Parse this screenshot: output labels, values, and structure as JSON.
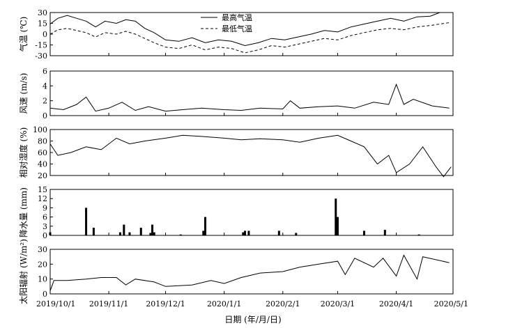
{
  "chart_data": {
    "type": "line",
    "xlabel": "日期 (年/月/日)",
    "x_range": [
      "2019-10-01",
      "2020-05-01"
    ],
    "x_tick_labels": [
      "2019/10/1",
      "2019/11/1",
      "2019/12/1",
      "2020/1/1",
      "2020/2/1",
      "2020/3/1",
      "2020/4/1",
      "2020/5/1"
    ],
    "x_tick_dates": [
      "2019-10-01",
      "2019-11-01",
      "2019-12-01",
      "2020-01-01",
      "2020-02-01",
      "2020-03-01",
      "2020-04-01",
      "2020-05-01"
    ],
    "panels": [
      {
        "id": "temperature",
        "ylabel": "气温 (℃)",
        "ylim": [
          -30,
          30
        ],
        "yticks": [
          30,
          15,
          0,
          -15,
          -30
        ],
        "legend": [
          "最高气温",
          "最低气温"
        ],
        "legend_position": "top-center",
        "series": [
          {
            "name": "最高气温",
            "style": "solid",
            "points": [
              [
                "2019-10-01",
                14
              ],
              [
                "2019-10-05",
                22
              ],
              [
                "2019-10-10",
                26
              ],
              [
                "2019-10-15",
                22
              ],
              [
                "2019-10-20",
                18
              ],
              [
                "2019-10-25",
                10
              ],
              [
                "2019-10-30",
                18
              ],
              [
                "2019-11-05",
                15
              ],
              [
                "2019-11-10",
                20
              ],
              [
                "2019-11-15",
                18
              ],
              [
                "2019-11-20",
                8
              ],
              [
                "2019-11-25",
                2
              ],
              [
                "2019-12-01",
                -8
              ],
              [
                "2019-12-08",
                -10
              ],
              [
                "2019-12-15",
                -5
              ],
              [
                "2019-12-22",
                -12
              ],
              [
                "2019-12-29",
                -8
              ],
              [
                "2020-01-05",
                -10
              ],
              [
                "2020-01-12",
                -16
              ],
              [
                "2020-01-19",
                -12
              ],
              [
                "2020-01-26",
                -6
              ],
              [
                "2020-02-02",
                -8
              ],
              [
                "2020-02-09",
                -4
              ],
              [
                "2020-02-16",
                0
              ],
              [
                "2020-02-23",
                5
              ],
              [
                "2020-03-01",
                3
              ],
              [
                "2020-03-08",
                10
              ],
              [
                "2020-03-15",
                14
              ],
              [
                "2020-03-22",
                18
              ],
              [
                "2020-03-29",
                22
              ],
              [
                "2020-04-05",
                18
              ],
              [
                "2020-04-12",
                24
              ],
              [
                "2020-04-19",
                25
              ],
              [
                "2020-04-24",
                30
              ]
            ]
          },
          {
            "name": "最低气温",
            "style": "dashed",
            "points": [
              [
                "2019-10-01",
                0
              ],
              [
                "2019-10-05",
                6
              ],
              [
                "2019-10-10",
                8
              ],
              [
                "2019-10-15",
                5
              ],
              [
                "2019-10-20",
                2
              ],
              [
                "2019-10-25",
                -4
              ],
              [
                "2019-10-30",
                2
              ],
              [
                "2019-11-05",
                0
              ],
              [
                "2019-11-10",
                4
              ],
              [
                "2019-11-15",
                0
              ],
              [
                "2019-11-20",
                -6
              ],
              [
                "2019-11-25",
                -12
              ],
              [
                "2019-12-01",
                -18
              ],
              [
                "2019-12-08",
                -20
              ],
              [
                "2019-12-15",
                -15
              ],
              [
                "2019-12-22",
                -22
              ],
              [
                "2019-12-29",
                -18
              ],
              [
                "2020-01-05",
                -20
              ],
              [
                "2020-01-12",
                -26
              ],
              [
                "2020-01-19",
                -22
              ],
              [
                "2020-01-26",
                -16
              ],
              [
                "2020-02-02",
                -18
              ],
              [
                "2020-02-09",
                -14
              ],
              [
                "2020-02-16",
                -10
              ],
              [
                "2020-02-23",
                -6
              ],
              [
                "2020-03-01",
                -8
              ],
              [
                "2020-03-08",
                -2
              ],
              [
                "2020-03-15",
                2
              ],
              [
                "2020-03-22",
                6
              ],
              [
                "2020-03-29",
                8
              ],
              [
                "2020-04-05",
                6
              ],
              [
                "2020-04-12",
                10
              ],
              [
                "2020-04-19",
                12
              ],
              [
                "2020-04-29",
                16
              ]
            ]
          }
        ]
      },
      {
        "id": "wind",
        "ylabel": "风速 (m/s)",
        "ylim": [
          0,
          6
        ],
        "yticks": [
          6,
          4,
          2,
          0
        ],
        "series": [
          {
            "name": "",
            "style": "solid",
            "points": [
              [
                "2019-10-01",
                1.0
              ],
              [
                "2019-10-08",
                0.8
              ],
              [
                "2019-10-15",
                1.5
              ],
              [
                "2019-10-20",
                2.5
              ],
              [
                "2019-10-25",
                0.6
              ],
              [
                "2019-11-01",
                1.0
              ],
              [
                "2019-11-08",
                1.8
              ],
              [
                "2019-11-15",
                0.7
              ],
              [
                "2019-11-22",
                1.2
              ],
              [
                "2019-12-01",
                0.6
              ],
              [
                "2019-12-10",
                0.8
              ],
              [
                "2019-12-20",
                1.0
              ],
              [
                "2020-01-01",
                0.8
              ],
              [
                "2020-01-10",
                0.7
              ],
              [
                "2020-01-20",
                1.0
              ],
              [
                "2020-02-01",
                0.9
              ],
              [
                "2020-02-05",
                2.0
              ],
              [
                "2020-02-10",
                1.0
              ],
              [
                "2020-02-20",
                1.2
              ],
              [
                "2020-03-01",
                1.3
              ],
              [
                "2020-03-10",
                1.0
              ],
              [
                "2020-03-20",
                1.8
              ],
              [
                "2020-03-28",
                1.5
              ],
              [
                "2020-04-01",
                4.2
              ],
              [
                "2020-04-05",
                1.5
              ],
              [
                "2020-04-10",
                2.2
              ],
              [
                "2020-04-20",
                1.3
              ],
              [
                "2020-04-29",
                1.0
              ]
            ]
          }
        ]
      },
      {
        "id": "humidity",
        "ylabel": "相对湿度 (%)",
        "ylim": [
          20,
          100
        ],
        "yticks": [
          100,
          80,
          60,
          40,
          20
        ],
        "series": [
          {
            "name": "",
            "style": "solid",
            "points": [
              [
                "2019-10-01",
                75
              ],
              [
                "2019-10-05",
                55
              ],
              [
                "2019-10-12",
                60
              ],
              [
                "2019-10-20",
                70
              ],
              [
                "2019-10-28",
                65
              ],
              [
                "2019-11-05",
                85
              ],
              [
                "2019-11-12",
                75
              ],
              [
                "2019-11-20",
                80
              ],
              [
                "2019-12-01",
                85
              ],
              [
                "2019-12-10",
                90
              ],
              [
                "2019-12-20",
                88
              ],
              [
                "2020-01-01",
                85
              ],
              [
                "2020-01-10",
                82
              ],
              [
                "2020-01-20",
                84
              ],
              [
                "2020-02-01",
                82
              ],
              [
                "2020-02-10",
                78
              ],
              [
                "2020-02-20",
                85
              ],
              [
                "2020-03-01",
                90
              ],
              [
                "2020-03-08",
                80
              ],
              [
                "2020-03-15",
                70
              ],
              [
                "2020-03-22",
                40
              ],
              [
                "2020-03-28",
                55
              ],
              [
                "2020-04-01",
                25
              ],
              [
                "2020-04-08",
                40
              ],
              [
                "2020-04-15",
                70
              ],
              [
                "2020-04-22",
                35
              ],
              [
                "2020-04-26",
                18
              ],
              [
                "2020-04-30",
                35
              ]
            ]
          }
        ]
      },
      {
        "id": "precipitation",
        "ylabel": "降水量 (mm)",
        "ylim": [
          0,
          15
        ],
        "yticks": [
          15,
          12,
          9,
          6,
          3,
          0
        ],
        "series": [
          {
            "name": "",
            "style": "bar",
            "points": [
              [
                "2019-10-01",
                1.0
              ],
              [
                "2019-10-20",
                9.0
              ],
              [
                "2019-10-24",
                2.5
              ],
              [
                "2019-11-07",
                1.0
              ],
              [
                "2019-11-09",
                3.5
              ],
              [
                "2019-11-12",
                1.0
              ],
              [
                "2019-11-18",
                2.5
              ],
              [
                "2019-11-23",
                0.8
              ],
              [
                "2019-11-24",
                3.5
              ],
              [
                "2019-11-25",
                1.0
              ],
              [
                "2019-12-09",
                0.3
              ],
              [
                "2019-12-21",
                1.5
              ],
              [
                "2019-12-22",
                6.0
              ],
              [
                "2020-01-11",
                1.0
              ],
              [
                "2020-01-12",
                1.5
              ],
              [
                "2020-01-14",
                1.5
              ],
              [
                "2020-01-30",
                1.5
              ],
              [
                "2020-02-08",
                0.8
              ],
              [
                "2020-02-29",
                12.0
              ],
              [
                "2020-03-01",
                6.0
              ],
              [
                "2020-03-15",
                1.5
              ],
              [
                "2020-03-26",
                1.8
              ],
              [
                "2020-04-13",
                0.3
              ]
            ]
          }
        ]
      },
      {
        "id": "radiation",
        "ylabel": "太阳辐射 (W/m²)",
        "ylim": [
          0,
          30
        ],
        "yticks": [
          30,
          20,
          10,
          0
        ],
        "series": [
          {
            "name": "",
            "style": "solid",
            "points": [
              [
                "2019-10-01",
                2
              ],
              [
                "2019-10-03",
                9
              ],
              [
                "2019-10-10",
                9
              ],
              [
                "2019-10-20",
                10
              ],
              [
                "2019-10-28",
                11
              ],
              [
                "2019-11-05",
                11
              ],
              [
                "2019-11-10",
                6
              ],
              [
                "2019-11-15",
                10
              ],
              [
                "2019-11-25",
                8
              ],
              [
                "2019-12-01",
                5
              ],
              [
                "2019-12-15",
                6
              ],
              [
                "2019-12-25",
                9
              ],
              [
                "2020-01-01",
                7
              ],
              [
                "2020-01-10",
                11
              ],
              [
                "2020-01-20",
                14
              ],
              [
                "2020-02-01",
                15
              ],
              [
                "2020-02-10",
                18
              ],
              [
                "2020-02-20",
                20
              ],
              [
                "2020-03-01",
                22
              ],
              [
                "2020-03-05",
                13
              ],
              [
                "2020-03-10",
                24
              ],
              [
                "2020-03-20",
                18
              ],
              [
                "2020-03-25",
                24
              ],
              [
                "2020-04-01",
                12
              ],
              [
                "2020-04-05",
                26
              ],
              [
                "2020-04-12",
                10
              ],
              [
                "2020-04-15",
                25
              ],
              [
                "2020-04-29",
                21
              ]
            ]
          }
        ]
      }
    ]
  }
}
